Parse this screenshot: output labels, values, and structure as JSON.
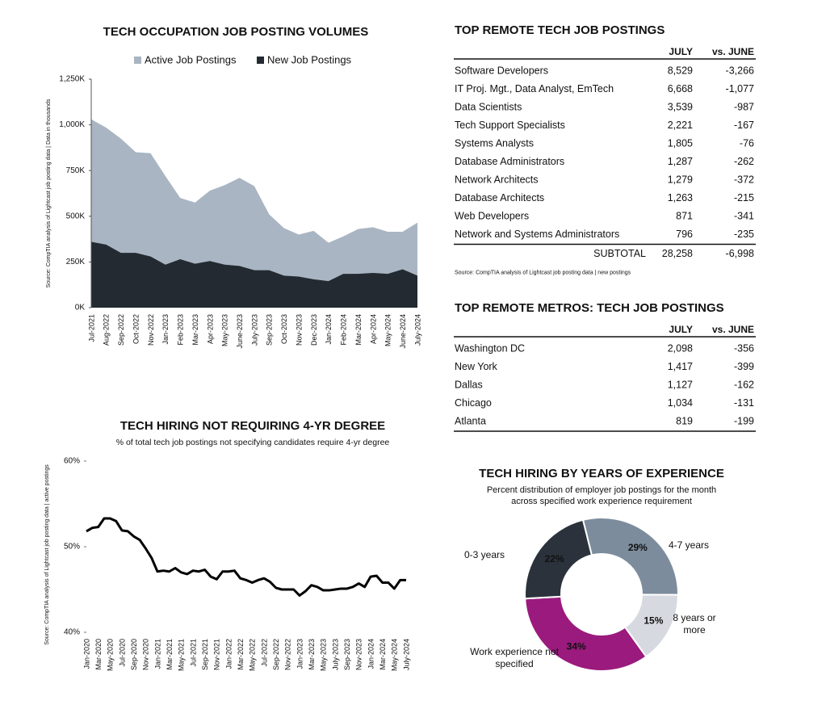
{
  "chart_data": [
    {
      "type": "area",
      "title": "TECH OCCUPATION JOB POSTING VOLUMES",
      "y_label": "Source: CompTIA analysis of Lightcast job posting data | Data in thousands",
      "categories": [
        "Jul-2021",
        "Aug-2022",
        "Sep-2022",
        "Oct-2022",
        "Nov-2022",
        "Jan-2023",
        "Feb-2023",
        "Mar-2023",
        "Apr-2023",
        "May-2023",
        "June-2023",
        "July-2023",
        "Sep-2023",
        "Oct-2023",
        "Nov-2023",
        "Dec-2023",
        "Jan-2024",
        "Feb-2024",
        "Mar-2024",
        "Apr-2024",
        "May-2024",
        "June-2024",
        "July-2024"
      ],
      "series": [
        {
          "name": "Active Job Postings",
          "color": "#a9b5c2",
          "values": [
            1030,
            985,
            925,
            850,
            845,
            720,
            600,
            575,
            640,
            670,
            710,
            665,
            510,
            435,
            400,
            420,
            355,
            390,
            430,
            440,
            415,
            415,
            465
          ]
        },
        {
          "name": "New Job Postings",
          "color": "#232a31",
          "values": [
            360,
            345,
            300,
            300,
            280,
            235,
            265,
            240,
            255,
            235,
            228,
            205,
            205,
            175,
            170,
            155,
            145,
            185,
            185,
            190,
            185,
            210,
            175
          ]
        }
      ],
      "ylim": [
        0,
        1250
      ],
      "yticks": [
        {
          "value": 0,
          "label": "0K"
        },
        {
          "value": 250,
          "label": "250K"
        },
        {
          "value": 500,
          "label": "500K"
        },
        {
          "value": 750,
          "label": "750K"
        },
        {
          "value": 1000,
          "label": "1,000K"
        },
        {
          "value": 1250,
          "label": "1,250K"
        }
      ]
    },
    {
      "type": "line",
      "title": "TECH HIRING NOT REQUIRING 4-YR DEGREE",
      "subtitle": "% of total tech job postings not specifying candidates require 4-yr degree",
      "y_label": "Source: CompTIA analysis of Lightcast job posting data | active postings",
      "categories": [
        "Jan-2020",
        null,
        "Mar-2020",
        null,
        "May-2020",
        null,
        "Jul-2020",
        null,
        "Sep-2020",
        null,
        "Nov-2020",
        null,
        "Jan-2021",
        null,
        "Mar-2021",
        null,
        "May-2021",
        null,
        "Jul-2021",
        null,
        "Sep-2021",
        null,
        "Nov-2021",
        null,
        "Jan-2022",
        null,
        "Mar-2022",
        null,
        "May-2022",
        null,
        "Jul-2022",
        null,
        "Sep-2022",
        null,
        "Nov-2022",
        null,
        "Jan-2023",
        null,
        "Mar-2023",
        null,
        "May-2023",
        null,
        "July-2023",
        null,
        "Sep-2023",
        null,
        "Nov-2023",
        null,
        "Jan-2024",
        null,
        "Mar-2024",
        null,
        "May-2024",
        null,
        "July-2024"
      ],
      "values": [
        51.8,
        52.2,
        52.3,
        53.3,
        53.3,
        53.0,
        51.9,
        51.8,
        51.2,
        50.8,
        49.8,
        48.7,
        47.1,
        47.2,
        47.1,
        47.5,
        47.0,
        46.8,
        47.2,
        47.1,
        47.3,
        46.5,
        46.2,
        47.1,
        47.1,
        47.2,
        46.3,
        46.1,
        45.8,
        46.1,
        46.3,
        45.9,
        45.2,
        45.0,
        45.0,
        45.0,
        44.3,
        44.8,
        45.5,
        45.3,
        44.9,
        44.9,
        45.0,
        45.1,
        45.1,
        45.3,
        45.7,
        45.3,
        46.5,
        46.6,
        45.8,
        45.8,
        45.1,
        46.1,
        46.1
      ],
      "color": "#000000",
      "ylim": [
        40,
        60
      ],
      "yticks": [
        {
          "value": 40,
          "label": "40%"
        },
        {
          "value": 50,
          "label": "50%"
        },
        {
          "value": 60,
          "label": "60%"
        }
      ]
    },
    {
      "type": "pie",
      "title": "TECH HIRING BY YEARS OF EXPERIENCE",
      "subtitle": "Percent distribution of employer job postings for the month across specified work experience requirement",
      "categories": [
        "4-7 years",
        "8 years or more",
        "Work experience not specified",
        "0-3 years"
      ],
      "values": [
        29,
        15,
        34,
        22
      ],
      "value_labels": [
        "29%",
        "15%",
        "34%",
        "22%"
      ],
      "colors": [
        "#7d8c9c",
        "#d6dae0",
        "#9b1a7d",
        "#2b323b"
      ]
    }
  ],
  "tables": [
    {
      "title": "TOP REMOTE TECH JOB POSTINGS",
      "columns": [
        "JULY",
        "vs. JUNE"
      ],
      "rows": [
        [
          "Software Developers",
          "8,529",
          "-3,266"
        ],
        [
          "IT Proj. Mgt., Data Analyst, EmTech",
          "6,668",
          "-1,077"
        ],
        [
          "Data Scientists",
          "3,539",
          "-987"
        ],
        [
          "Tech Support Specialists",
          "2,221",
          "-167"
        ],
        [
          "Systems Analysts",
          "1,805",
          "-76"
        ],
        [
          "Database Administrators",
          "1,287",
          "-262"
        ],
        [
          "Network Architects",
          "1,279",
          "-372"
        ],
        [
          "Database Architects",
          "1,263",
          "-215"
        ],
        [
          "Web Developers",
          "871",
          "-341"
        ],
        [
          "Network and Systems Administrators",
          "796",
          "-235"
        ]
      ],
      "subtotal": [
        "SUBTOTAL",
        "28,258",
        "-6,998"
      ],
      "source": "Source: CompTIA analysis of Lightcast job posting data | new postings"
    },
    {
      "title": "TOP REMOTE METROS: TECH JOB POSTINGS",
      "columns": [
        "JULY",
        "vs. JUNE"
      ],
      "rows": [
        [
          "Washington DC",
          "2,098",
          "-356"
        ],
        [
          "New York",
          "1,417",
          "-399"
        ],
        [
          "Dallas",
          "1,127",
          "-162"
        ],
        [
          "Chicago",
          "1,034",
          "-131"
        ],
        [
          "Atlanta",
          "819",
          "-199"
        ]
      ]
    }
  ]
}
